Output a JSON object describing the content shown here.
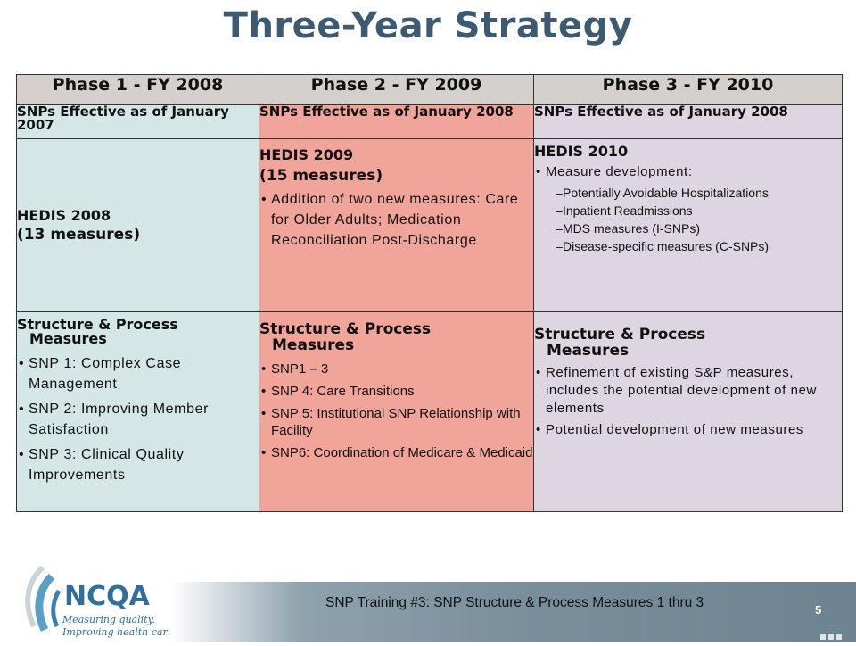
{
  "slide": {
    "title": "Three-Year Strategy",
    "footer_text": "SNP Training #3:  SNP Structure & Process Measures 1 thru 3",
    "page_number": "5",
    "logo_text": "NCQA",
    "logo_tagline_1": "Measuring quality.",
    "logo_tagline_2": "Improving health care."
  },
  "table": {
    "headers": [
      "Phase 1 - FY 2008",
      "Phase 2 - FY 2009",
      "Phase 3 - FY 2010"
    ],
    "effective": [
      "SNPs Effective as of January 2007",
      "SNPs Effective as of January 2008",
      "SNPs Effective as of January 2008"
    ],
    "hedis": [
      {
        "title": "HEDIS 2008",
        "count": "(13 measures)"
      },
      {
        "title": "HEDIS 2009",
        "count": "(15 measures)",
        "bullet": "Addition of two new measures: Care for Older Adults; Medication Reconciliation Post-Discharge"
      },
      {
        "title": "HEDIS 2010",
        "bullet": "Measure development:",
        "subitems": [
          "Potentially Avoidable Hospitalizations",
          "Inpatient Readmissions",
          "MDS measures (I-SNPs)",
          "Disease-specific measures (C-SNPs)"
        ]
      }
    ],
    "sp": [
      {
        "title_1": "Structure & Process",
        "title_2": "Measures",
        "bullets": [
          "SNP 1: Complex Case Management",
          "SNP 2: Improving Member Satisfaction",
          "SNP 3: Clinical Quality Improvements"
        ]
      },
      {
        "title_1": "Structure & Process",
        "title_2": "Measures",
        "bullets": [
          "SNP1 – 3",
          "SNP 4: Care Transitions",
          "SNP 5: Institutional SNP Relationship with Facility",
          "SNP6: Coordination of Medicare & Medicaid"
        ]
      },
      {
        "title_1": "Structure & Process",
        "title_2": "Measures",
        "bullets": [
          "Refinement of existing S&P measures, includes the potential development of new elements",
          "Potential development of new measures"
        ]
      }
    ]
  },
  "colors": {
    "title": "#3e5a70",
    "phase1": "#d4e6e6",
    "phase2": "#f0a49a",
    "phase3": "#ddd6e1",
    "header": "#d6d0cc"
  }
}
